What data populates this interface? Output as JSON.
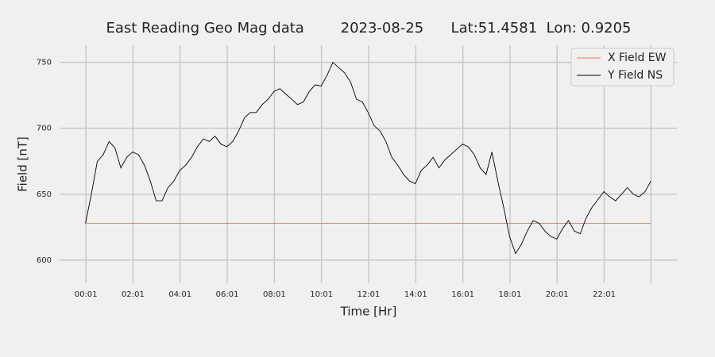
{
  "chart_data": {
    "type": "line",
    "title": "East Reading Geo Mag data        2023-08-25      Lat:51.4581  Lon: 0.9205",
    "xlabel": "Time  [Hr]",
    "ylabel": "Field  [nT]",
    "x": [
      0,
      0.25,
      0.5,
      0.75,
      1,
      1.25,
      1.5,
      1.75,
      2,
      2.25,
      2.5,
      2.75,
      3,
      3.25,
      3.5,
      3.75,
      4,
      4.25,
      4.5,
      4.75,
      5,
      5.25,
      5.5,
      5.75,
      6,
      6.25,
      6.5,
      6.75,
      7,
      7.25,
      7.5,
      7.75,
      8,
      8.25,
      8.5,
      8.75,
      9,
      9.25,
      9.5,
      9.75,
      10,
      10.25,
      10.5,
      10.75,
      11,
      11.25,
      11.5,
      11.75,
      12,
      12.25,
      12.5,
      12.75,
      13,
      13.25,
      13.5,
      13.75,
      14,
      14.25,
      14.5,
      14.75,
      15,
      15.25,
      15.5,
      15.75,
      16,
      16.25,
      16.5,
      16.75,
      17,
      17.25,
      17.5,
      17.75,
      18,
      18.25,
      18.5,
      18.75,
      19,
      19.25,
      19.5,
      19.75,
      20,
      20.25,
      20.5,
      20.75,
      21,
      21.25,
      21.5,
      21.75,
      22,
      22.25,
      22.5,
      22.75,
      23,
      23.25,
      23.5,
      23.75,
      24
    ],
    "series": [
      {
        "name": "X Field EW",
        "color": "#e8735a",
        "values": [
          628,
          628,
          628,
          628,
          628,
          628,
          628,
          628,
          628,
          628,
          628,
          628,
          628,
          628,
          628,
          628,
          628,
          628,
          628,
          628,
          628,
          628,
          628,
          628,
          628,
          628,
          628,
          628,
          628,
          628,
          628,
          628,
          628,
          628,
          628,
          628,
          628,
          628,
          628,
          628,
          628,
          628,
          628,
          628,
          628,
          628,
          628,
          628,
          628,
          628,
          628,
          628,
          628,
          628,
          628,
          628,
          628,
          628,
          628,
          628,
          628,
          628,
          628,
          628,
          628,
          628,
          628,
          628,
          628,
          628,
          628,
          628,
          628,
          628,
          628,
          628,
          628,
          628,
          628,
          628,
          628,
          628,
          628,
          628,
          628,
          628,
          628,
          628,
          628,
          628,
          628,
          628,
          628,
          628,
          628,
          628,
          628
        ]
      },
      {
        "name": "Y Field NS",
        "color": "#000000",
        "values": [
          628,
          650,
          675,
          680,
          690,
          685,
          670,
          678,
          682,
          680,
          672,
          660,
          645,
          645,
          655,
          660,
          668,
          672,
          678,
          686,
          692,
          690,
          694,
          688,
          686,
          690,
          698,
          708,
          712,
          712,
          718,
          722,
          728,
          730,
          726,
          722,
          718,
          720,
          728,
          733,
          732,
          740,
          750,
          746,
          742,
          735,
          722,
          720,
          712,
          702,
          698,
          690,
          678,
          672,
          665,
          660,
          658,
          668,
          672,
          678,
          670,
          676,
          680,
          684,
          688,
          686,
          680,
          670,
          665,
          682,
          660,
          640,
          618,
          605,
          612,
          622,
          630,
          628,
          622,
          618,
          616,
          624,
          630,
          622,
          620,
          632,
          640,
          646,
          652,
          648,
          645,
          650,
          655,
          650,
          648,
          652,
          660
        ]
      }
    ],
    "xlim": [
      -1.1,
      25.1
    ],
    "xticks": [
      {
        "value": 0.0167,
        "label": "00:01"
      },
      {
        "value": 2.0167,
        "label": "02:01"
      },
      {
        "value": 4.0167,
        "label": "04:01"
      },
      {
        "value": 6.0167,
        "label": "06:01"
      },
      {
        "value": 8.0167,
        "label": "08:01"
      },
      {
        "value": 10.0167,
        "label": "10:01"
      },
      {
        "value": 12.0167,
        "label": "12:01"
      },
      {
        "value": 14.0167,
        "label": "14:01"
      },
      {
        "value": 16.0167,
        "label": "16:01"
      },
      {
        "value": 18.0167,
        "label": "18:01"
      },
      {
        "value": 20.0167,
        "label": "20:01"
      },
      {
        "value": 22.0167,
        "label": "22:01"
      },
      {
        "value": 24.0,
        "label": ""
      }
    ],
    "ylim": [
      582.5,
      763
    ],
    "yticks": [
      600,
      650,
      700,
      750
    ],
    "grid": true,
    "legend": "upper right"
  }
}
